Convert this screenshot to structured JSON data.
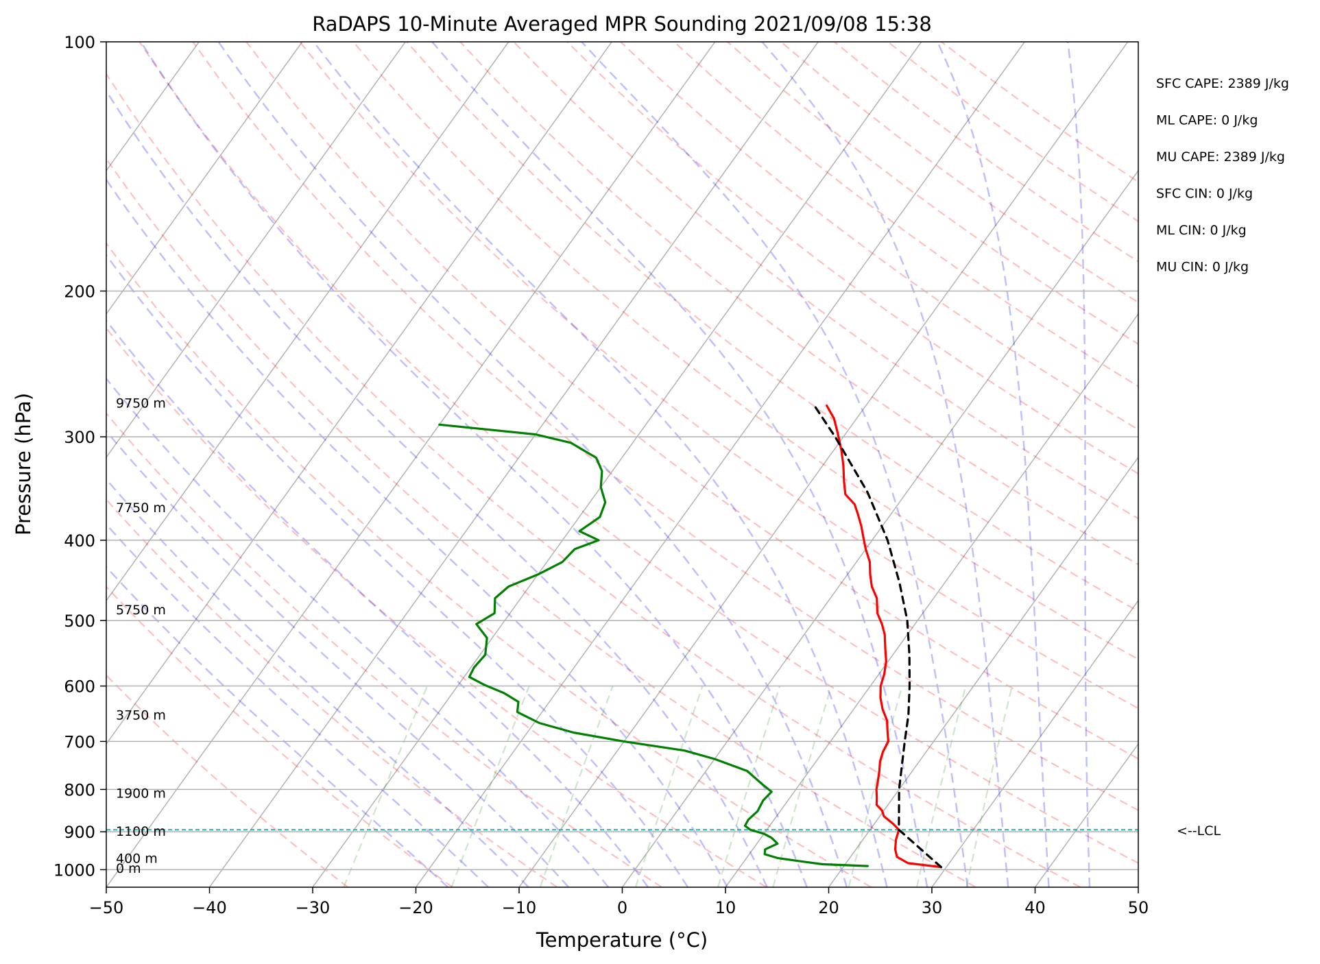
{
  "chart_data": {
    "type": "line",
    "subtype": "skew-t log-p sounding",
    "title": "RaDAPS 10-Minute Averaged MPR Sounding 2021/09/08 15:38",
    "xlabel": "Temperature (°C)",
    "ylabel": "Pressure (hPa)",
    "xlim": [
      -50,
      50
    ],
    "ylim": [
      1050,
      100
    ],
    "y_scale": "log",
    "x_ticks": [
      -50,
      -40,
      -30,
      -20,
      -10,
      0,
      10,
      20,
      30,
      40,
      50
    ],
    "x_tick_labels": [
      "−50",
      "−40",
      "−30",
      "−20",
      "−10",
      "0",
      "10",
      "20",
      "30",
      "40",
      "50"
    ],
    "y_ticks": [
      100,
      200,
      300,
      400,
      500,
      600,
      700,
      800,
      900,
      1000
    ],
    "y_tick_labels": [
      "100",
      "200",
      "300",
      "400",
      "500",
      "600",
      "700",
      "800",
      "900",
      "1000"
    ],
    "grid": "horizontal at pressure ticks",
    "background_lines": {
      "isotherms": {
        "color": "#000000",
        "alpha": 0.3
      },
      "dry_adiabats": {
        "color": "#ff0000",
        "alpha": 0.25,
        "style": "dashed"
      },
      "moist_adiabats": {
        "color": "#0000ff",
        "alpha": 0.25,
        "style": "dashed"
      },
      "mixing_ratio": {
        "color": "#008000",
        "alpha": 0.2,
        "style": "dashed"
      }
    },
    "series": [
      {
        "role": "temperature",
        "color": "#ff0000",
        "points": [
          [
            993,
            29.5
          ],
          [
            982,
            26.0
          ],
          [
            965,
            24.5
          ],
          [
            945,
            23.8
          ],
          [
            920,
            23.2
          ],
          [
            895,
            22.8
          ],
          [
            880,
            21.8
          ],
          [
            862,
            20.4
          ],
          [
            848,
            19.8
          ],
          [
            835,
            18.9
          ],
          [
            818,
            18.4
          ],
          [
            800,
            17.8
          ],
          [
            783,
            17.4
          ],
          [
            760,
            16.8
          ],
          [
            740,
            16.2
          ],
          [
            720,
            15.8
          ],
          [
            700,
            15.6
          ],
          [
            680,
            14.8
          ],
          [
            660,
            14.0
          ],
          [
            640,
            12.8
          ],
          [
            620,
            11.8
          ],
          [
            600,
            11.0
          ],
          [
            580,
            10.5
          ],
          [
            560,
            9.8
          ],
          [
            540,
            8.8
          ],
          [
            520,
            7.8
          ],
          [
            505,
            6.8
          ],
          [
            490,
            5.6
          ],
          [
            470,
            4.5
          ],
          [
            455,
            3.2
          ],
          [
            440,
            2.2
          ],
          [
            425,
            1.3
          ],
          [
            410,
            0.0
          ],
          [
            395,
            -1.2
          ],
          [
            385,
            -2.0
          ],
          [
            372,
            -3.2
          ],
          [
            362,
            -4.2
          ],
          [
            352,
            -5.8
          ],
          [
            340,
            -6.8
          ],
          [
            325,
            -8.0
          ],
          [
            312,
            -9.2
          ],
          [
            297,
            -10.8
          ],
          [
            285,
            -12.2
          ],
          [
            275,
            -13.8
          ]
        ]
      },
      {
        "role": "dewpoint",
        "color": "#008000",
        "points": [
          [
            990,
            22.3
          ],
          [
            985,
            17.8
          ],
          [
            978,
            15.8
          ],
          [
            968,
            13.0
          ],
          [
            958,
            11.5
          ],
          [
            945,
            11.2
          ],
          [
            930,
            12.0
          ],
          [
            915,
            11.0
          ],
          [
            905,
            10.0
          ],
          [
            895,
            8.4
          ],
          [
            885,
            7.6
          ],
          [
            870,
            7.5
          ],
          [
            850,
            7.8
          ],
          [
            825,
            7.6
          ],
          [
            805,
            7.8
          ],
          [
            790,
            6.5
          ],
          [
            760,
            4.0
          ],
          [
            735,
            0.0
          ],
          [
            718,
            -3.5
          ],
          [
            700,
            -10.0
          ],
          [
            683,
            -15.5
          ],
          [
            665,
            -19.5
          ],
          [
            645,
            -22.4
          ],
          [
            627,
            -23.0
          ],
          [
            612,
            -25.0
          ],
          [
            598,
            -27.5
          ],
          [
            585,
            -29.5
          ],
          [
            570,
            -29.7
          ],
          [
            550,
            -29.5
          ],
          [
            525,
            -30.5
          ],
          [
            505,
            -32.5
          ],
          [
            490,
            -31.5
          ],
          [
            470,
            -32.5
          ],
          [
            455,
            -32.0
          ],
          [
            440,
            -30.0
          ],
          [
            425,
            -28.5
          ],
          [
            410,
            -28.2
          ],
          [
            400,
            -26.5
          ],
          [
            390,
            -29.0
          ],
          [
            375,
            -28.0
          ],
          [
            360,
            -28.5
          ],
          [
            345,
            -30.0
          ],
          [
            330,
            -31.0
          ],
          [
            318,
            -32.5
          ],
          [
            305,
            -36.0
          ],
          [
            298,
            -40.0
          ],
          [
            290,
            -50.0
          ]
        ]
      },
      {
        "role": "parcel",
        "color": "#000000",
        "style": "dashed",
        "points": [
          [
            993,
            29.5
          ],
          [
            895,
            22.8
          ],
          [
            800,
            20.0
          ],
          [
            700,
            17.2
          ],
          [
            650,
            15.7
          ],
          [
            600,
            13.8
          ],
          [
            550,
            11.6
          ],
          [
            500,
            9.0
          ],
          [
            450,
            5.6
          ],
          [
            400,
            1.5
          ],
          [
            350,
            -3.8
          ],
          [
            300,
            -10.8
          ],
          [
            275,
            -15.0
          ]
        ]
      }
    ],
    "lcl": {
      "pressure": 895,
      "label": "<--LCL",
      "color": "#20b2aa",
      "style": "dashed"
    },
    "height_labels": [
      {
        "text": "9750 m",
        "pressure": 273
      },
      {
        "text": "7750 m",
        "pressure": 365
      },
      {
        "text": "5750 m",
        "pressure": 485
      },
      {
        "text": "3750 m",
        "pressure": 650
      },
      {
        "text": "1900 m",
        "pressure": 808
      },
      {
        "text": "1100 m",
        "pressure": 898
      },
      {
        "text": "400 m",
        "pressure": 968
      },
      {
        "text": "0 m",
        "pressure": 995
      }
    ],
    "parameters": [
      "SFC CAPE: 2389 J/kg",
      "ML CAPE: 0 J/kg",
      "MU CAPE: 2389 J/kg",
      "SFC CIN: 0 J/kg",
      "ML CIN: 0 J/kg",
      "MU CIN: 0 J/kg"
    ]
  }
}
